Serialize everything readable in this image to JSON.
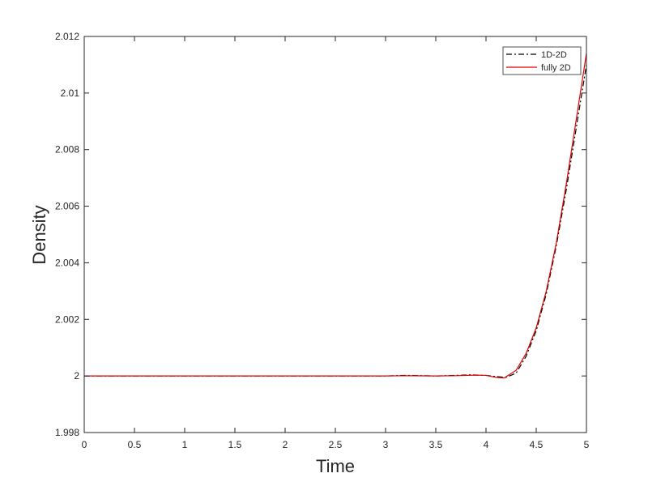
{
  "chart_data": {
    "type": "line",
    "xlabel": "Time",
    "ylabel": "Density",
    "xlim": [
      0,
      5
    ],
    "ylim": [
      1.998,
      2.012
    ],
    "xticks": [
      0,
      0.5,
      1,
      1.5,
      2,
      2.5,
      3,
      3.5,
      4,
      4.5,
      5
    ],
    "xtick_labels": [
      "0",
      "0.5",
      "1",
      "1.5",
      "2",
      "2.5",
      "3",
      "3.5",
      "4",
      "4.5",
      "5"
    ],
    "yticks": [
      1.998,
      2,
      2.002,
      2.004,
      2.006,
      2.008,
      2.01,
      2.012
    ],
    "ytick_labels": [
      "1.998",
      "2",
      "2.002",
      "2.004",
      "2.006",
      "2.008",
      "2.01",
      "2.012"
    ],
    "grid": false,
    "legend_position": "top-right",
    "series": [
      {
        "name": "1D-2D",
        "color": "#000000",
        "linestyle": "dashdot",
        "x": [
          0,
          2.5,
          3.0,
          3.2,
          3.5,
          3.7,
          3.85,
          4.0,
          4.1,
          4.2,
          4.3,
          4.4,
          4.5,
          4.6,
          4.7,
          4.8,
          4.9,
          5.0
        ],
        "y": [
          2.0,
          2.0,
          2.0,
          2.00002,
          2.0,
          2.00002,
          2.00004,
          2.00002,
          1.99998,
          1.99995,
          2.0001,
          2.0007,
          2.0016,
          2.0029,
          2.0046,
          2.0066,
          2.0088,
          2.011
        ]
      },
      {
        "name": "fully 2D",
        "color": "#e00000",
        "linestyle": "solid",
        "x": [
          0,
          2.5,
          3.0,
          3.2,
          3.5,
          3.7,
          3.9,
          4.0,
          4.1,
          4.18,
          4.3,
          4.4,
          4.5,
          4.6,
          4.7,
          4.8,
          4.9,
          5.0
        ],
        "y": [
          2.0,
          2.0,
          2.0,
          2.00001,
          2.0,
          2.00001,
          2.00003,
          2.00002,
          1.99995,
          1.99993,
          2.0002,
          2.0008,
          2.0017,
          2.003,
          2.0047,
          2.0068,
          2.0091,
          2.0114
        ]
      }
    ]
  }
}
